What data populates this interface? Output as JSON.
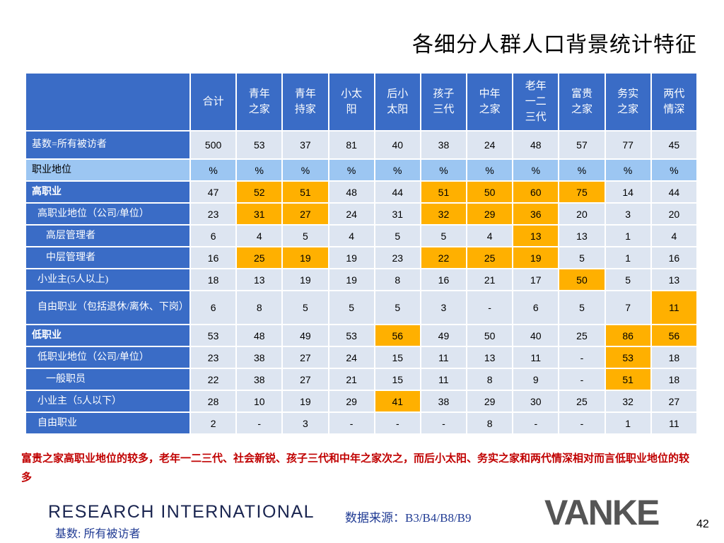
{
  "header": {
    "title": "各细分人群人口背景统计特征"
  },
  "table": {
    "columns": [
      "合计",
      "青年之家",
      "青年持家",
      "小太阳",
      "后小太阳",
      "孩子三代",
      "中年之家",
      "老年一二三代",
      "富贵之家",
      "务实之家",
      "两代情深"
    ],
    "rows": [
      {
        "label": "基数=所有被访者",
        "values": [
          500,
          53,
          37,
          81,
          40,
          38,
          24,
          48,
          57,
          77,
          45
        ]
      },
      {
        "label": "职业地位",
        "values": [
          "%",
          "%",
          "%",
          "%",
          "%",
          "%",
          "%",
          "%",
          "%",
          "%",
          "%"
        ]
      },
      {
        "label": "高职业",
        "values": [
          47,
          52,
          51,
          48,
          44,
          51,
          50,
          60,
          75,
          14,
          44
        ]
      },
      {
        "label": "高职业地位（公司/单位）",
        "values": [
          23,
          31,
          27,
          24,
          31,
          32,
          29,
          36,
          20,
          3,
          20
        ]
      },
      {
        "label": "高层管理者",
        "values": [
          6,
          4,
          5,
          4,
          5,
          5,
          4,
          13,
          13,
          1,
          4
        ]
      },
      {
        "label": "中层管理者",
        "values": [
          16,
          25,
          19,
          19,
          23,
          22,
          25,
          19,
          5,
          1,
          16
        ]
      },
      {
        "label": "小业主(5人以上)",
        "values": [
          18,
          13,
          19,
          19,
          8,
          16,
          21,
          17,
          50,
          5,
          13
        ]
      },
      {
        "label": "自由职业（包括退休/离休、下岗）",
        "values": [
          6,
          8,
          5,
          5,
          5,
          3,
          "-",
          6,
          5,
          7,
          11
        ]
      },
      {
        "label": "低职业",
        "values": [
          53,
          48,
          49,
          53,
          56,
          49,
          50,
          40,
          25,
          86,
          56
        ]
      },
      {
        "label": "低职业地位（公司/单位）",
        "values": [
          23,
          38,
          27,
          24,
          15,
          11,
          13,
          11,
          "-",
          53,
          18
        ]
      },
      {
        "label": "一般职员",
        "values": [
          22,
          38,
          27,
          21,
          15,
          11,
          8,
          9,
          "-",
          51,
          18
        ]
      },
      {
        "label": "小业主（5人以下）",
        "values": [
          28,
          10,
          19,
          29,
          41,
          38,
          29,
          30,
          25,
          32,
          27
        ]
      },
      {
        "label": "自由职业",
        "values": [
          2,
          "-",
          3,
          "-",
          "-",
          "-",
          8,
          "-",
          "-",
          1,
          11
        ]
      }
    ]
  },
  "note": "富贵之家高职业地位的较多，老年一二三代、社会新锐、孩子三代和中年之家次之，而后小太阳、务实之家和两代情深相对而言低职业地位的较多",
  "footer": {
    "company": "RESEARCH INTERNATIONAL",
    "base": "基数: 所有被访者",
    "source": "数据来源：B3/B4/B8/B9",
    "logo": "VANKE",
    "page": "42"
  }
}
